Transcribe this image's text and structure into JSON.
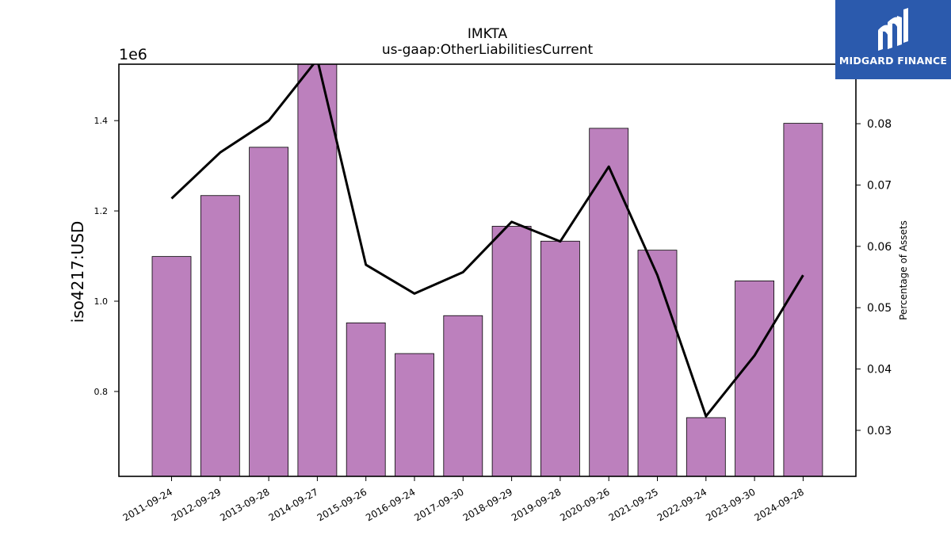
{
  "chart_data": {
    "type": "bar",
    "title": "IMKTA",
    "subtitle": "us-gaap:OtherLiabilitiesCurrent",
    "ylabel": "iso4217:USD",
    "y2label": "Percentage of Assets",
    "y_offset_label": "1e6",
    "categories": [
      "2011-09-24",
      "2012-09-29",
      "2013-09-28",
      "2014-09-27",
      "2015-09-26",
      "2016-09-24",
      "2017-09-30",
      "2018-09-29",
      "2019-09-28",
      "2020-09-26",
      "2021-09-25",
      "2022-09-24",
      "2023-09-30",
      "2024-09-28"
    ],
    "series": [
      {
        "type": "bar",
        "values": [
          1099000,
          1234000,
          1341000,
          1527000,
          952000,
          884000,
          968000,
          1166000,
          1133000,
          1383000,
          1113000,
          742000,
          1045000,
          1394000
        ],
        "color": "#bc80bd",
        "axis": "left"
      },
      {
        "type": "line",
        "values": [
          0.0678,
          0.0753,
          0.0805,
          0.0905,
          0.057,
          0.0523,
          0.0558,
          0.064,
          0.0608,
          0.073,
          0.0553,
          0.0323,
          0.0422,
          0.0553
        ],
        "color": "#000000",
        "axis": "right"
      }
    ],
    "ylim": [
      612000,
      1525000
    ],
    "y2lim": [
      0.0225,
      0.0897
    ],
    "yticks": [
      {
        "v": 800000,
        "label": "0.8"
      },
      {
        "v": 1000000,
        "label": "1.0"
      },
      {
        "v": 1200000,
        "label": "1.2"
      },
      {
        "v": 1400000,
        "label": "1.4"
      }
    ],
    "y2ticks": [
      {
        "v": 0.03,
        "label": "0.03"
      },
      {
        "v": 0.04,
        "label": "0.04"
      },
      {
        "v": 0.05,
        "label": "0.05"
      },
      {
        "v": 0.06,
        "label": "0.06"
      },
      {
        "v": 0.07,
        "label": "0.07"
      },
      {
        "v": 0.08,
        "label": "0.08"
      }
    ],
    "grid": false,
    "legend": "none"
  },
  "logo": {
    "text": "MIDGARD FINANCE"
  }
}
